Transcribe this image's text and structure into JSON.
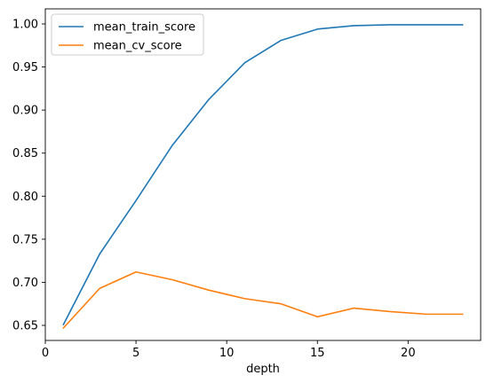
{
  "chart_data": {
    "type": "line",
    "title": "",
    "xlabel": "depth",
    "ylabel": "",
    "xlim": [
      0,
      24
    ],
    "ylim": [
      0.6325,
      1.0175
    ],
    "xticks": [
      0,
      5,
      10,
      15,
      20
    ],
    "xtick_labels": [
      "0",
      "5",
      "10",
      "15",
      "20"
    ],
    "yticks": [
      0.65,
      0.7,
      0.75,
      0.8,
      0.85,
      0.9,
      0.95,
      1.0
    ],
    "ytick_labels": [
      "0.65",
      "0.70",
      "0.75",
      "0.80",
      "0.85",
      "0.90",
      "0.95",
      "1.00"
    ],
    "grid": false,
    "legend_position": "top-left",
    "x": [
      1,
      3,
      5,
      7,
      9,
      11,
      13,
      15,
      17,
      19,
      21,
      23
    ],
    "series": [
      {
        "name": "mean_train_score",
        "color": "#1f77b4",
        "values": [
          0.651,
          0.733,
          0.795,
          0.859,
          0.912,
          0.955,
          0.981,
          0.994,
          0.998,
          0.999,
          0.999,
          0.999
        ]
      },
      {
        "name": "mean_cv_score",
        "color": "#ff7f0e",
        "values": [
          0.647,
          0.693,
          0.712,
          0.703,
          0.691,
          0.681,
          0.675,
          0.66,
          0.67,
          0.666,
          0.663,
          0.663
        ]
      }
    ]
  }
}
